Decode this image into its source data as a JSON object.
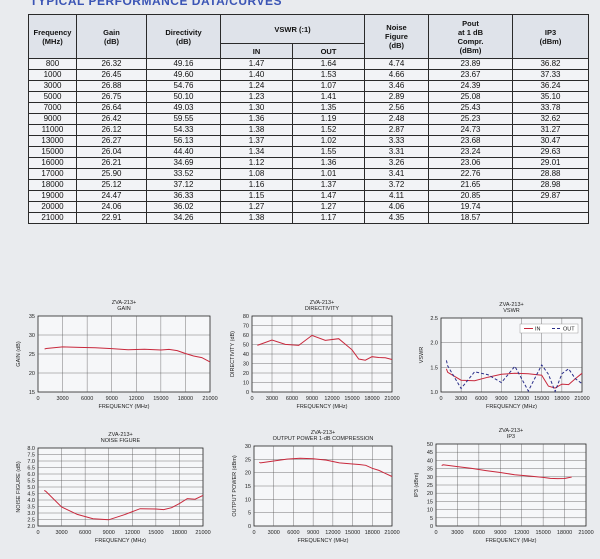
{
  "header": {
    "title": "TYPICAL PERFORMANCE DATA/CURVES"
  },
  "table": {
    "headers": {
      "freq": "Frequency\n(MHz)",
      "gain": "Gain\n(dB)",
      "directivity": "Directivity\n(dB)",
      "vswr": "VSWR (:1)",
      "vswr_in": "IN",
      "vswr_out": "OUT",
      "nf": "Noise\nFigure\n(dB)",
      "pout": "Pout\nat 1 dB\nCompr.\n(dBm)",
      "ip3": "IP3\n(dBm)"
    },
    "rows": [
      [
        "800",
        "26.32",
        "49.16",
        "1.47",
        "1.64",
        "4.74",
        "23.89",
        "36.82"
      ],
      [
        "1000",
        "26.45",
        "49.60",
        "1.40",
        "1.53",
        "4.66",
        "23.67",
        "37.33"
      ],
      [
        "3000",
        "26.88",
        "54.76",
        "1.24",
        "1.07",
        "3.46",
        "24.39",
        "36.24"
      ],
      [
        "5000",
        "26.75",
        "50.10",
        "1.23",
        "1.41",
        "2.89",
        "25.08",
        "35.10"
      ],
      [
        "7000",
        "26.64",
        "49.03",
        "1.30",
        "1.35",
        "2.56",
        "25.43",
        "33.78"
      ],
      [
        "9000",
        "26.42",
        "59.55",
        "1.36",
        "1.19",
        "2.48",
        "25.23",
        "32.62"
      ],
      [
        "11000",
        "26.12",
        "54.33",
        "1.38",
        "1.52",
        "2.87",
        "24.73",
        "31.27"
      ],
      [
        "13000",
        "26.27",
        "56.13",
        "1.37",
        "1.02",
        "3.33",
        "23.68",
        "30.47"
      ],
      [
        "15000",
        "26.04",
        "44.40",
        "1.34",
        "1.55",
        "3.31",
        "23.24",
        "29.63"
      ],
      [
        "16000",
        "26.21",
        "34.69",
        "1.12",
        "1.36",
        "3.26",
        "23.06",
        "29.01"
      ],
      [
        "17000",
        "25.90",
        "33.52",
        "1.08",
        "1.01",
        "3.41",
        "22.76",
        "28.88"
      ],
      [
        "18000",
        "25.12",
        "37.12",
        "1.16",
        "1.37",
        "3.72",
        "21.65",
        "28.98"
      ],
      [
        "19000",
        "24.47",
        "36.33",
        "1.15",
        "1.47",
        "4.11",
        "20.85",
        "29.87"
      ],
      [
        "20000",
        "24.06",
        "36.02",
        "1.27",
        "1.27",
        "4.06",
        "19.74",
        ""
      ],
      [
        "21000",
        "22.91",
        "34.26",
        "1.38",
        "1.17",
        "4.35",
        "18.57",
        ""
      ]
    ]
  },
  "colors": {
    "trace": "#c8283c",
    "trace2": "#2b2f8a",
    "grid": "#555555"
  },
  "chart_data": [
    {
      "type": "line",
      "model": "ZVA-213+",
      "title": "GAIN",
      "xlabel": "FREQUENCY (MHz)",
      "ylabel": "GAIN (dB)",
      "xlim": [
        0,
        21000
      ],
      "ylim": [
        15,
        35
      ],
      "xticks": [
        "0",
        "3000",
        "6000",
        "9000",
        "12000",
        "15000",
        "18000",
        "21000"
      ],
      "yticks": [
        "15",
        "20",
        "25",
        "30",
        "35"
      ],
      "x": [
        800,
        1000,
        3000,
        5000,
        7000,
        9000,
        11000,
        13000,
        15000,
        16000,
        17000,
        18000,
        19000,
        20000,
        21000
      ],
      "series": [
        {
          "values": [
            26.32,
            26.45,
            26.88,
            26.75,
            26.64,
            26.42,
            26.12,
            26.27,
            26.04,
            26.21,
            25.9,
            25.12,
            24.47,
            24.06,
            22.91
          ]
        }
      ]
    },
    {
      "type": "line",
      "model": "ZVA-213+",
      "title": "DIRECTIVITY",
      "xlabel": "FREQUENCY (MHz)",
      "ylabel": "DIRECTIVITY (dB)",
      "xlim": [
        0,
        21000
      ],
      "ylim": [
        0,
        80
      ],
      "xticks": [
        "0",
        "3000",
        "6000",
        "9000",
        "12000",
        "15000",
        "18000",
        "21000"
      ],
      "yticks": [
        "0",
        "10",
        "20",
        "30",
        "40",
        "50",
        "60",
        "70",
        "80"
      ],
      "x": [
        800,
        1000,
        3000,
        5000,
        7000,
        9000,
        11000,
        13000,
        15000,
        16000,
        17000,
        18000,
        19000,
        20000,
        21000
      ],
      "series": [
        {
          "values": [
            49.16,
            49.6,
            54.76,
            50.1,
            49.03,
            59.55,
            54.33,
            56.13,
            44.4,
            34.69,
            33.52,
            37.12,
            36.33,
            36.02,
            34.26
          ]
        }
      ]
    },
    {
      "type": "line",
      "model": "ZVA-213+",
      "title": "VSWR",
      "xlabel": "FREQUENCY (MHz)",
      "ylabel": "VSWR",
      "xlim": [
        0,
        21000
      ],
      "ylim": [
        1.0,
        2.5
      ],
      "xticks": [
        "0",
        "3000",
        "6000",
        "9000",
        "12000",
        "15000",
        "18000",
        "21000"
      ],
      "yticks": [
        "1.0",
        "1.5",
        "2.0",
        "2.5"
      ],
      "legend": "top-right",
      "x": [
        800,
        1000,
        3000,
        5000,
        7000,
        9000,
        11000,
        13000,
        15000,
        16000,
        17000,
        18000,
        19000,
        20000,
        21000
      ],
      "series": [
        {
          "name": "IN",
          "values": [
            1.47,
            1.4,
            1.24,
            1.23,
            1.3,
            1.36,
            1.38,
            1.37,
            1.34,
            1.12,
            1.08,
            1.16,
            1.15,
            1.27,
            1.38
          ]
        },
        {
          "name": "OUT",
          "values": [
            1.64,
            1.53,
            1.07,
            1.41,
            1.35,
            1.19,
            1.52,
            1.02,
            1.55,
            1.36,
            1.01,
            1.37,
            1.47,
            1.27,
            1.17
          ]
        }
      ]
    },
    {
      "type": "line",
      "model": "ZVA-213+",
      "title": "NOISE FIGURE",
      "xlabel": "FREQUENCY (MHz)",
      "ylabel": "NOISE FIGURE (dB)",
      "xlim": [
        0,
        21000
      ],
      "ylim": [
        2.0,
        8.0
      ],
      "xticks": [
        "0",
        "3000",
        "6000",
        "9000",
        "12000",
        "15000",
        "18000",
        "21000"
      ],
      "yticks": [
        "2.0",
        "2.5",
        "3.0",
        "3.5",
        "4.0",
        "4.5",
        "5.0",
        "5.5",
        "6.0",
        "6.5",
        "7.0",
        "7.5",
        "8.0"
      ],
      "x": [
        800,
        1000,
        3000,
        5000,
        7000,
        9000,
        11000,
        13000,
        15000,
        16000,
        17000,
        18000,
        19000,
        20000,
        21000
      ],
      "series": [
        {
          "values": [
            4.74,
            4.66,
            3.46,
            2.89,
            2.56,
            2.48,
            2.87,
            3.33,
            3.31,
            3.26,
            3.41,
            3.72,
            4.11,
            4.06,
            4.35
          ]
        }
      ]
    },
    {
      "type": "line",
      "model": "ZVA-213+",
      "title": "OUTPUT POWER 1-dB COMPRESSION",
      "xlabel": "FREQUENCY (MHz)",
      "ylabel": "OUTPUT POWER (dBm)",
      "xlim": [
        0,
        21000
      ],
      "ylim": [
        0,
        30
      ],
      "xticks": [
        "0",
        "3000",
        "6000",
        "9000",
        "12000",
        "15000",
        "18000",
        "21000"
      ],
      "yticks": [
        "0",
        "5",
        "10",
        "15",
        "20",
        "25",
        "30"
      ],
      "x": [
        800,
        1000,
        3000,
        5000,
        7000,
        9000,
        11000,
        13000,
        15000,
        16000,
        17000,
        18000,
        19000,
        20000,
        21000
      ],
      "series": [
        {
          "values": [
            23.89,
            23.67,
            24.39,
            25.08,
            25.43,
            25.23,
            24.73,
            23.68,
            23.24,
            23.06,
            22.76,
            21.65,
            20.85,
            19.74,
            18.57
          ]
        }
      ]
    },
    {
      "type": "line",
      "model": "ZVA-213+",
      "title": "IP3",
      "xlabel": "FREQUENCY (MHz)",
      "ylabel": "IP3 (dBm)",
      "xlim": [
        0,
        21000
      ],
      "ylim": [
        0,
        50
      ],
      "xticks": [
        "0",
        "3000",
        "6000",
        "9000",
        "12000",
        "15000",
        "18000",
        "21000"
      ],
      "yticks": [
        "0",
        "5",
        "10",
        "15",
        "20",
        "25",
        "30",
        "35",
        "40",
        "45",
        "50"
      ],
      "x": [
        800,
        1000,
        3000,
        5000,
        7000,
        9000,
        11000,
        13000,
        15000,
        16000,
        17000,
        18000,
        19000
      ],
      "series": [
        {
          "values": [
            36.82,
            37.33,
            36.24,
            35.1,
            33.78,
            32.62,
            31.27,
            30.47,
            29.63,
            29.01,
            28.88,
            28.98,
            29.87
          ]
        }
      ]
    }
  ]
}
